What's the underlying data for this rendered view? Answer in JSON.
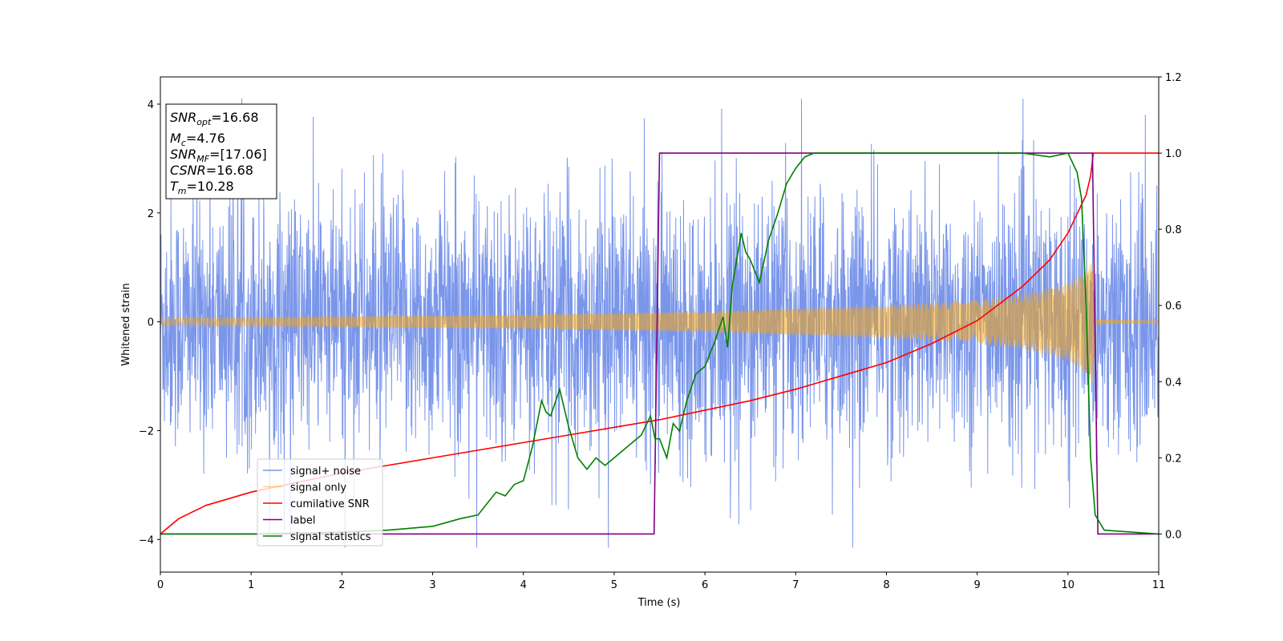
{
  "chart_data": {
    "type": "line",
    "xlabel": "Time (s)",
    "ylabel": "Whitened strain",
    "xlim": [
      0,
      11
    ],
    "ylim": [
      -4.6,
      4.5
    ],
    "y2lim": [
      -0.1,
      1.2
    ],
    "xticks": [
      "0",
      "1",
      "2",
      "3",
      "4",
      "5",
      "6",
      "7",
      "8",
      "9",
      "10",
      "11"
    ],
    "yticks": [
      "4",
      "2",
      "0",
      "−2",
      "−4"
    ],
    "y2ticks": [
      "1.2",
      "1.0",
      "0.8",
      "0.6",
      "0.4",
      "0.2",
      "0.0"
    ],
    "legend_position": "lower-left",
    "annotation": {
      "snr_opt": "16.68",
      "mc": "4.76",
      "snr_mf": "[17.06]",
      "csnr": "16.68",
      "tm": "10.28"
    },
    "series": [
      {
        "name": "signal+ noise",
        "axis": "left",
        "color": "#4169e1",
        "kind": "noise",
        "x_range": [
          0,
          11
        ],
        "envelope": 2.6,
        "description_values": {
          "typical_min": -3.2,
          "typical_max": 3.9,
          "global_min": -4.15,
          "global_max": 4.1
        }
      },
      {
        "name": "signal only",
        "axis": "left",
        "color": "#ffa500",
        "kind": "chirp",
        "amplitude": [
          [
            0,
            0.07
          ],
          [
            2,
            0.1
          ],
          [
            4,
            0.13
          ],
          [
            6,
            0.19
          ],
          [
            8,
            0.3
          ],
          [
            9,
            0.4
          ],
          [
            9.5,
            0.5
          ],
          [
            10,
            0.7
          ],
          [
            10.2,
            0.95
          ],
          [
            10.28,
            1.15
          ],
          [
            10.3,
            0.05
          ],
          [
            11,
            0.02
          ]
        ]
      },
      {
        "name": "cumilative SNR",
        "axis": "right",
        "color": "#ff0000",
        "x": [
          0,
          0.2,
          0.5,
          1,
          1.5,
          2,
          2.5,
          3,
          3.5,
          4,
          4.5,
          5,
          5.5,
          6,
          6.5,
          7,
          7.5,
          8,
          8.5,
          9,
          9.5,
          9.8,
          10,
          10.1,
          10.2,
          10.25,
          10.28,
          11
        ],
        "y": [
          0.0,
          0.04,
          0.075,
          0.11,
          0.135,
          0.16,
          0.18,
          0.2,
          0.22,
          0.24,
          0.26,
          0.28,
          0.3,
          0.325,
          0.35,
          0.38,
          0.415,
          0.45,
          0.5,
          0.56,
          0.65,
          0.72,
          0.79,
          0.84,
          0.89,
          0.94,
          1.0,
          1.0
        ]
      },
      {
        "name": "label",
        "axis": "right",
        "color": "#800080",
        "x": [
          0,
          5.44,
          5.5,
          10.27,
          10.33,
          11
        ],
        "y": [
          0,
          0,
          1,
          1,
          0,
          0
        ]
      },
      {
        "name": "signal statistics",
        "axis": "right",
        "color": "#008000",
        "x": [
          0,
          1,
          2,
          2.5,
          3,
          3.3,
          3.5,
          3.6,
          3.7,
          3.8,
          3.9,
          4.0,
          4.1,
          4.2,
          4.25,
          4.3,
          4.4,
          4.5,
          4.6,
          4.7,
          4.8,
          4.9,
          5.0,
          5.1,
          5.2,
          5.3,
          5.4,
          5.45,
          5.5,
          5.58,
          5.65,
          5.72,
          5.8,
          5.9,
          6.0,
          6.1,
          6.2,
          6.25,
          6.3,
          6.4,
          6.45,
          6.5,
          6.6,
          6.7,
          6.8,
          6.9,
          7.0,
          7.1,
          7.2,
          7.5,
          8,
          9,
          9.5,
          9.8,
          10.0,
          10.1,
          10.15,
          10.2,
          10.25,
          10.3,
          10.4,
          11
        ],
        "y": [
          0,
          0.0,
          0.005,
          0.01,
          0.02,
          0.04,
          0.05,
          0.08,
          0.11,
          0.1,
          0.13,
          0.14,
          0.23,
          0.35,
          0.32,
          0.31,
          0.38,
          0.28,
          0.2,
          0.17,
          0.2,
          0.18,
          0.2,
          0.22,
          0.24,
          0.26,
          0.31,
          0.25,
          0.25,
          0.2,
          0.29,
          0.27,
          0.35,
          0.42,
          0.44,
          0.5,
          0.57,
          0.49,
          0.65,
          0.79,
          0.74,
          0.72,
          0.66,
          0.77,
          0.84,
          0.92,
          0.96,
          0.99,
          1.0,
          1.0,
          1.0,
          1.0,
          1.0,
          0.99,
          1.0,
          0.95,
          0.88,
          0.6,
          0.2,
          0.05,
          0.01,
          0.0
        ]
      }
    ]
  }
}
